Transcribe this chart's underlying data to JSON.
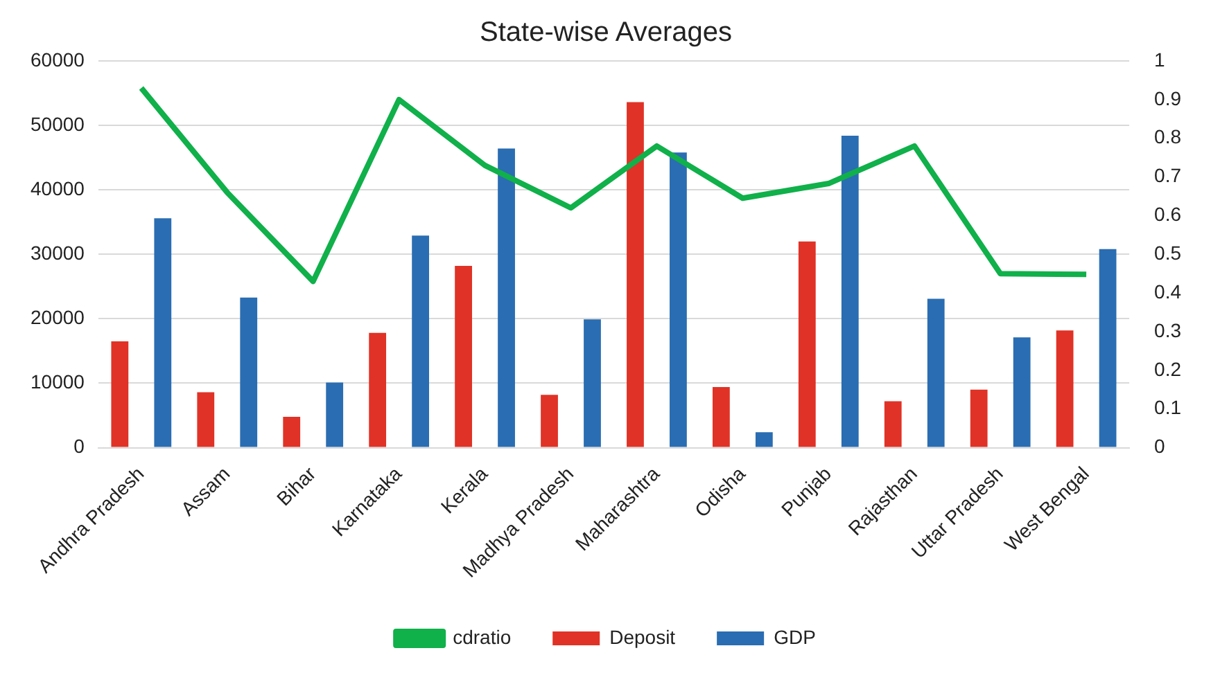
{
  "chart_data": {
    "type": "bar",
    "title": "State-wise Averages",
    "categories": [
      "Andhra Pradesh",
      "Assam",
      "Bihar",
      "Karnataka",
      "Kerala",
      "Madhya Pradesh",
      "Maharashtra",
      "Odisha",
      "Punjab",
      "Rajasthan",
      "Uttar Pradesh",
      "West Bengal"
    ],
    "series": [
      {
        "name": "Deposit",
        "color": "#e03226",
        "values": [
          16500,
          8600,
          4800,
          17800,
          28200,
          8200,
          53600,
          9400,
          32000,
          7200,
          9000,
          18200
        ]
      },
      {
        "name": "GDP",
        "color": "#2a6db2",
        "values": [
          35600,
          23300,
          10100,
          32900,
          46400,
          19900,
          45800,
          2400,
          48400,
          23100,
          17100,
          30800
        ]
      },
      {
        "name": "cdratio",
        "type": "line",
        "axis": "y2",
        "color": "#10b04a",
        "values": [
          0.93,
          0.66,
          0.43,
          0.9,
          0.73,
          0.62,
          0.78,
          0.645,
          0.683,
          0.78,
          0.45,
          0.448
        ]
      }
    ],
    "ylim": [
      0,
      60000
    ],
    "yticks": [
      0,
      10000,
      20000,
      30000,
      40000,
      50000,
      60000
    ],
    "y2lim": [
      0,
      1
    ],
    "y2ticks": [
      0,
      0.1,
      0.2,
      0.3,
      0.4,
      0.5,
      0.6,
      0.7,
      0.8,
      0.9,
      1
    ],
    "grid": "y",
    "legend": "bottom",
    "marker": "none"
  }
}
